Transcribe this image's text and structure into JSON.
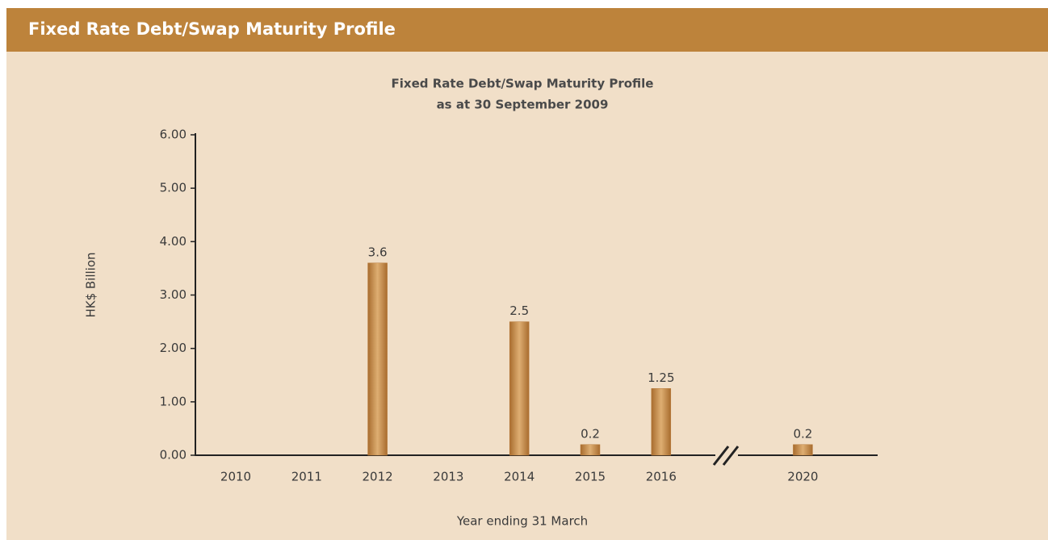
{
  "header": {
    "title": "Fixed Rate Debt/Swap Maturity Profile"
  },
  "chart_data": {
    "type": "bar",
    "title": "Fixed Rate Debt/Swap Maturity Profile",
    "subtitle": "as at 30 September 2009",
    "x_label": "Year ending 31 March",
    "y_label": "HK$ Billion",
    "categories": [
      "2010",
      "2011",
      "2012",
      "2013",
      "2014",
      "2015",
      "2016",
      null,
      "2020"
    ],
    "values": [
      0,
      0,
      3.6,
      0,
      2.5,
      0.2,
      1.25,
      null,
      0.2
    ],
    "color": "#b97b3b",
    "ylim": [
      0,
      6
    ],
    "yticks": [
      {
        "value": 0,
        "label": "0.00"
      },
      {
        "value": 1,
        "label": "1.00"
      },
      {
        "value": 2,
        "label": "2.00"
      },
      {
        "value": 3,
        "label": "3.00"
      },
      {
        "value": 4,
        "label": "4.00"
      },
      {
        "value": 5,
        "label": "5.00"
      },
      {
        "value": 6,
        "label": "6.00"
      }
    ],
    "grid": false
  }
}
